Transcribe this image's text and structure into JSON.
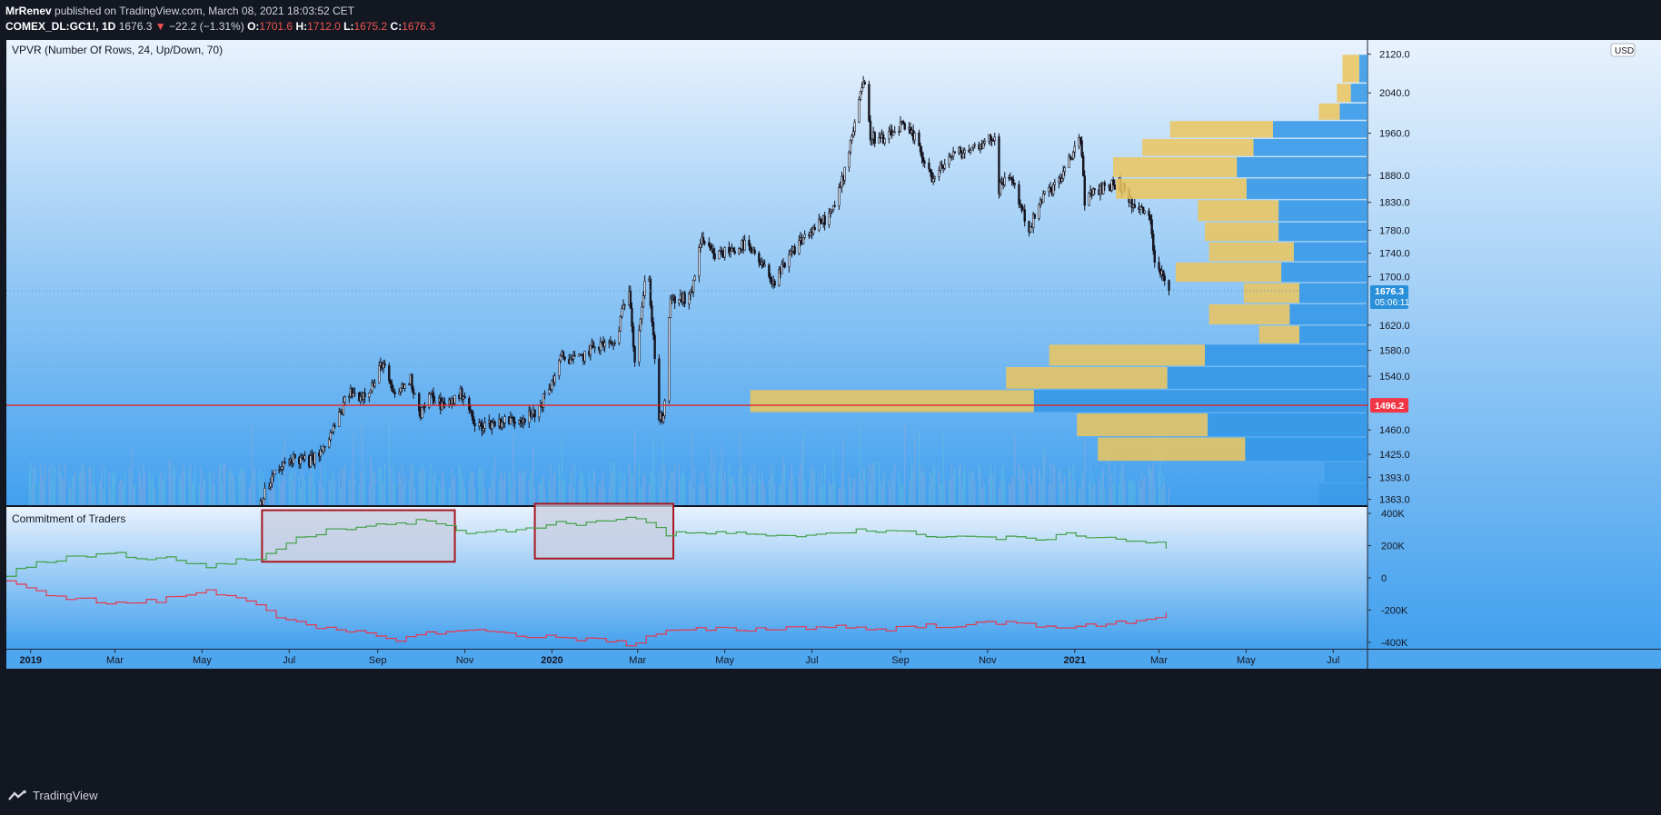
{
  "header": {
    "author": "MrRenev",
    "published_text": "published on TradingView.com, March 08, 2021 18:03:52 CET",
    "symbol": "COMEX_DL:GC1!, 1D",
    "last": "1676.3",
    "change_arrow": "▼",
    "change": "−22.2 (−1.31%)",
    "o_label": "O:",
    "o_value": "1701.6",
    "h_label": "H:",
    "h_value": "1712.0",
    "l_label": "L:",
    "l_value": "1675.2",
    "c_label": "C:",
    "c_value": "1676.3"
  },
  "footer": {
    "brand": "TradingView",
    "logo_icon": "tradingview-logo-icon"
  },
  "colors": {
    "page_bg": "#131722",
    "panel_top": "#e8f2fd",
    "panel_bottom": "#42a0ee",
    "candle": "#151520",
    "horizontal_line": "#e0262b",
    "price_line_dotted": "#5b8fb3",
    "cot_green": "#43a047",
    "cot_red": "#e53950",
    "vp_up": "#3296e6",
    "vp_down": "#ecc55d",
    "box_border": "#a8171f",
    "box_fill": "#c8cde0",
    "label_blue": "#2a8fd9",
    "label_red": "#f23645"
  },
  "chart_data": [
    {
      "type": "candlestick",
      "title": "COMEX_DL:GC1!, 1D",
      "indicator_title": "VPVR (Number Of Rows, 24, Up/Down, 70)",
      "currency_badge": "USD",
      "ylim": [
        1355,
        2150
      ],
      "y_scale": "log",
      "y_ticks": [
        "2120.0",
        "2040.0",
        "1960.0",
        "1880.0",
        "1830.0",
        "1780.0",
        "1740.0",
        "1700.0",
        "1620.0",
        "1580.0",
        "1540.0",
        "1460.0",
        "1425.0",
        "1393.0",
        "1363.0"
      ],
      "y_tick_values": [
        2120,
        2040,
        1960,
        1880,
        1830,
        1780,
        1740,
        1700,
        1620,
        1580,
        1540,
        1460,
        1425,
        1393,
        1363
      ],
      "x_ticks": [
        "2019",
        "Mar",
        "May",
        "Jul",
        "Sep",
        "Nov",
        "2020",
        "Mar",
        "May",
        "Jul",
        "Sep",
        "Nov",
        "2021",
        "Mar",
        "May",
        "Jul"
      ],
      "x_tick_dates": [
        "2019-01-01",
        "2019-03-01",
        "2019-05-01",
        "2019-07-01",
        "2019-09-01",
        "2019-11-01",
        "2020-01-01",
        "2020-03-01",
        "2020-05-01",
        "2020-07-01",
        "2020-09-01",
        "2020-11-01",
        "2021-01-01",
        "2021-03-01",
        "2021-05-01",
        "2021-07-01"
      ],
      "x_range": [
        "2018-12-15",
        "2021-07-25"
      ],
      "close_anchors": [
        [
          "2019-06-01",
          1330
        ],
        [
          "2019-06-10",
          1355
        ],
        [
          "2019-06-20",
          1395
        ],
        [
          "2019-07-03",
          1420
        ],
        [
          "2019-07-15",
          1415
        ],
        [
          "2019-07-25",
          1430
        ],
        [
          "2019-08-05",
          1480
        ],
        [
          "2019-08-12",
          1515
        ],
        [
          "2019-08-20",
          1510
        ],
        [
          "2019-08-30",
          1530
        ],
        [
          "2019-09-04",
          1562
        ],
        [
          "2019-09-12",
          1510
        ],
        [
          "2019-09-24",
          1535
        ],
        [
          "2019-10-01",
          1485
        ],
        [
          "2019-10-08",
          1510
        ],
        [
          "2019-10-17",
          1495
        ],
        [
          "2019-10-31",
          1515
        ],
        [
          "2019-11-08",
          1465
        ],
        [
          "2019-11-20",
          1470
        ],
        [
          "2019-12-05",
          1475
        ],
        [
          "2019-12-20",
          1482
        ],
        [
          "2019-12-31",
          1525
        ],
        [
          "2020-01-08",
          1570
        ],
        [
          "2020-01-20",
          1565
        ],
        [
          "2020-01-31",
          1588
        ],
        [
          "2020-02-14",
          1590
        ],
        [
          "2020-02-24",
          1685
        ],
        [
          "2020-02-28",
          1565
        ],
        [
          "2020-03-06",
          1685
        ],
        [
          "2020-03-09",
          1690
        ],
        [
          "2020-03-16",
          1480
        ],
        [
          "2020-03-19",
          1472
        ],
        [
          "2020-03-24",
          1660
        ],
        [
          "2020-04-07",
          1665
        ],
        [
          "2020-04-14",
          1760
        ],
        [
          "2020-04-24",
          1735
        ],
        [
          "2020-05-15",
          1755
        ],
        [
          "2020-06-05",
          1690
        ],
        [
          "2020-06-22",
          1760
        ],
        [
          "2020-07-06",
          1790
        ],
        [
          "2020-07-16",
          1815
        ],
        [
          "2020-07-24",
          1890
        ],
        [
          "2020-07-31",
          1985
        ],
        [
          "2020-08-06",
          2070
        ],
        [
          "2020-08-11",
          1955
        ],
        [
          "2020-08-21",
          1945
        ],
        [
          "2020-09-01",
          1975
        ],
        [
          "2020-09-11",
          1950
        ],
        [
          "2020-09-24",
          1870
        ],
        [
          "2020-10-05",
          1915
        ],
        [
          "2020-10-21",
          1930
        ],
        [
          "2020-11-06",
          1955
        ],
        [
          "2020-11-09",
          1855
        ],
        [
          "2020-11-17",
          1880
        ],
        [
          "2020-11-30",
          1780
        ],
        [
          "2020-12-10",
          1840
        ],
        [
          "2020-12-23",
          1875
        ],
        [
          "2021-01-05",
          1955
        ],
        [
          "2021-01-08",
          1835
        ],
        [
          "2021-01-22",
          1860
        ],
        [
          "2021-02-01",
          1865
        ],
        [
          "2021-02-12",
          1820
        ],
        [
          "2021-02-22",
          1810
        ],
        [
          "2021-02-26",
          1730
        ],
        [
          "2021-03-05",
          1700
        ],
        [
          "2021-03-08",
          1676.3
        ]
      ],
      "last_price": 1676.3,
      "last_price_label": "1676.3",
      "countdown": "05:06:11",
      "horizontal_line": 1496.2,
      "horizontal_line_label": "1496.2",
      "volume_profile": {
        "rows": [
          {
            "lo": 2060,
            "hi": 2120,
            "down": 1.2,
            "up": 0.6
          },
          {
            "lo": 2020,
            "hi": 2060,
            "down": 1.0,
            "up": 1.2
          },
          {
            "lo": 1985,
            "hi": 2020,
            "down": 1.5,
            "up": 2.0
          },
          {
            "lo": 1950,
            "hi": 1985,
            "down": 7.4,
            "up": 6.8
          },
          {
            "lo": 1915,
            "hi": 1950,
            "down": 8.0,
            "up": 8.2
          },
          {
            "lo": 1875,
            "hi": 1915,
            "down": 8.9,
            "up": 9.4
          },
          {
            "lo": 1835,
            "hi": 1875,
            "down": 9.4,
            "up": 8.7
          },
          {
            "lo": 1795,
            "hi": 1835,
            "down": 5.8,
            "up": 6.4
          },
          {
            "lo": 1760,
            "hi": 1795,
            "down": 5.3,
            "up": 6.4
          },
          {
            "lo": 1725,
            "hi": 1760,
            "down": 6.1,
            "up": 5.3
          },
          {
            "lo": 1690,
            "hi": 1725,
            "down": 7.6,
            "up": 6.2
          },
          {
            "lo": 1655,
            "hi": 1690,
            "down": 4.0,
            "up": 4.9
          },
          {
            "lo": 1620,
            "hi": 1655,
            "down": 5.8,
            "up": 5.6
          },
          {
            "lo": 1590,
            "hi": 1620,
            "down": 2.9,
            "up": 4.9
          },
          {
            "lo": 1555,
            "hi": 1590,
            "down": 11.2,
            "up": 11.7
          },
          {
            "lo": 1520,
            "hi": 1555,
            "down": 11.6,
            "up": 14.4
          },
          {
            "lo": 1485,
            "hi": 1520,
            "down": 20.4,
            "up": 24.0
          },
          {
            "lo": 1450,
            "hi": 1485,
            "down": 9.4,
            "up": 11.5
          },
          {
            "lo": 1415,
            "hi": 1450,
            "down": 10.6,
            "up": 8.8
          },
          {
            "lo": 1385,
            "hi": 1415,
            "down": 0,
            "up": 3.1
          },
          {
            "lo": 1355,
            "hi": 1385,
            "down": 0,
            "up": 3.5
          }
        ]
      }
    },
    {
      "type": "line",
      "title": "Commitment of Traders",
      "ylim": [
        -440000,
        440000
      ],
      "y_ticks": [
        "400K",
        "200K",
        "0",
        "-200K",
        "-400K"
      ],
      "y_tick_values": [
        400000,
        200000,
        0,
        -200000,
        -400000
      ],
      "series": [
        {
          "color": "green",
          "anchors": [
            [
              "2018-12-15",
              20000
            ],
            [
              "2019-01-01",
              80000
            ],
            [
              "2019-02-01",
              140000
            ],
            [
              "2019-03-01",
              150000
            ],
            [
              "2019-03-20",
              120000
            ],
            [
              "2019-04-10",
              120000
            ],
            [
              "2019-05-01",
              70000
            ],
            [
              "2019-05-20",
              100000
            ],
            [
              "2019-06-10",
              120000
            ],
            [
              "2019-06-20",
              180000
            ],
            [
              "2019-07-10",
              260000
            ],
            [
              "2019-08-01",
              300000
            ],
            [
              "2019-09-01",
              340000
            ],
            [
              "2019-10-01",
              350000
            ],
            [
              "2019-10-15",
              350000
            ],
            [
              "2019-11-01",
              280000
            ],
            [
              "2019-12-01",
              290000
            ],
            [
              "2020-01-01",
              340000
            ],
            [
              "2020-02-01",
              340000
            ],
            [
              "2020-02-24",
              390000
            ],
            [
              "2020-03-10",
              330000
            ],
            [
              "2020-03-20",
              270000
            ],
            [
              "2020-05-01",
              280000
            ],
            [
              "2020-06-01",
              250000
            ],
            [
              "2020-07-01",
              270000
            ],
            [
              "2020-08-01",
              300000
            ],
            [
              "2020-09-01",
              280000
            ],
            [
              "2020-10-01",
              260000
            ],
            [
              "2020-11-01",
              250000
            ],
            [
              "2020-12-01",
              240000
            ],
            [
              "2021-01-01",
              270000
            ],
            [
              "2021-02-01",
              240000
            ],
            [
              "2021-03-01",
              210000
            ],
            [
              "2021-03-08",
              180000
            ]
          ]
        },
        {
          "color": "red",
          "anchors": [
            [
              "2018-12-15",
              -30000
            ],
            [
              "2019-01-01",
              -80000
            ],
            [
              "2019-02-01",
              -130000
            ],
            [
              "2019-03-01",
              -160000
            ],
            [
              "2019-04-01",
              -140000
            ],
            [
              "2019-05-01",
              -80000
            ],
            [
              "2019-06-01",
              -130000
            ],
            [
              "2019-06-25",
              -250000
            ],
            [
              "2019-07-15",
              -310000
            ],
            [
              "2019-08-15",
              -340000
            ],
            [
              "2019-09-15",
              -380000
            ],
            [
              "2019-10-15",
              -330000
            ],
            [
              "2019-11-15",
              -330000
            ],
            [
              "2019-12-15",
              -360000
            ],
            [
              "2020-01-15",
              -380000
            ],
            [
              "2020-02-01",
              -370000
            ],
            [
              "2020-02-24",
              -420000
            ],
            [
              "2020-03-15",
              -340000
            ],
            [
              "2020-04-15",
              -320000
            ],
            [
              "2020-05-15",
              -320000
            ],
            [
              "2020-06-15",
              -310000
            ],
            [
              "2020-07-15",
              -300000
            ],
            [
              "2020-08-15",
              -320000
            ],
            [
              "2020-09-15",
              -300000
            ],
            [
              "2020-10-15",
              -290000
            ],
            [
              "2020-11-15",
              -280000
            ],
            [
              "2020-12-15",
              -300000
            ],
            [
              "2021-01-15",
              -300000
            ],
            [
              "2021-02-15",
              -260000
            ],
            [
              "2021-03-08",
              -220000
            ]
          ]
        }
      ],
      "highlight_boxes": [
        {
          "from": "2019-06-12",
          "to": "2019-10-25",
          "hi": 420000,
          "lo": 100000
        },
        {
          "from": "2019-12-20",
          "to": "2020-03-26",
          "hi": 460000,
          "lo": 120000
        }
      ]
    }
  ]
}
